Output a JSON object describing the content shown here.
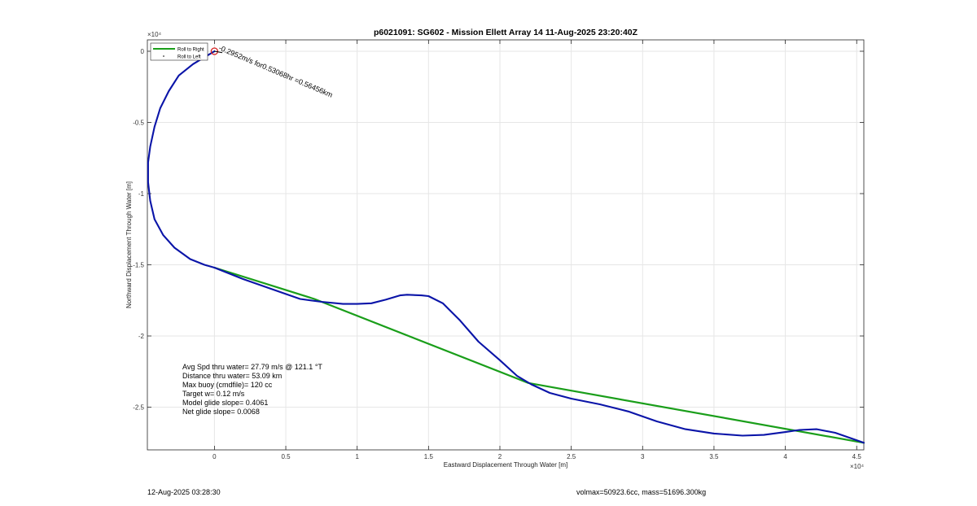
{
  "chart_data": {
    "type": "line",
    "title": "p6021091: SG602 - Mission Ellett Array 14 11-Aug-2025 23:20:40Z",
    "xlabel": "Eastward Displacement Through Water [m]",
    "ylabel": "Northward Displacement Through Water [m]",
    "x_exponent_label": "×10⁴",
    "y_exponent_label": "×10⁴",
    "xlim": [
      -0.47,
      4.55
    ],
    "ylim": [
      -2.8,
      0.08
    ],
    "x_ticks": [
      0,
      0.5,
      1,
      1.5,
      2,
      2.5,
      3,
      3.5,
      4,
      4.5
    ],
    "x_tick_labels": [
      "0",
      "0.5",
      "1",
      "1.5",
      "2",
      "2.5",
      "3",
      "3.5",
      "4",
      "4.5"
    ],
    "y_ticks": [
      0,
      -0.5,
      -1,
      -1.5,
      -2,
      -2.5
    ],
    "y_tick_labels": [
      "0",
      "-0.5",
      "-1",
      "-1.5",
      "-2",
      "-2.5"
    ],
    "grid": true,
    "legend_position": "top-left",
    "legend": [
      "Roll to Right",
      "Roll to Left"
    ],
    "series": [
      {
        "name": "Roll to Right",
        "color": "#1a9e1a",
        "x": [
          0,
          0.7,
          2.2,
          4.55
        ],
        "y": [
          -1.52,
          -1.74,
          -2.33,
          -2.75
        ]
      },
      {
        "color": "#0a14a8",
        "x": [
          0,
          -0.15,
          -0.25,
          -0.32,
          -0.38,
          -0.42,
          -0.45,
          -0.465,
          -0.465,
          -0.45,
          -0.42,
          -0.36,
          -0.28,
          -0.17,
          -0.07,
          0,
          0.2,
          0.4,
          0.6,
          0.75,
          0.9,
          1.0,
          1.1,
          1.2,
          1.3,
          1.35,
          1.45,
          1.5,
          1.6,
          1.72,
          1.85,
          2.0,
          2.12,
          2.22,
          2.35,
          2.5,
          2.7,
          2.9,
          3.1,
          3.3,
          3.5,
          3.7,
          3.85,
          4.0,
          4.1,
          4.22,
          4.35,
          4.45,
          4.55
        ],
        "y": [
          0,
          -0.09,
          -0.17,
          -0.28,
          -0.4,
          -0.53,
          -0.67,
          -0.78,
          -0.92,
          -1.05,
          -1.18,
          -1.29,
          -1.38,
          -1.46,
          -1.5,
          -1.52,
          -1.6,
          -1.67,
          -1.74,
          -1.76,
          -1.775,
          -1.775,
          -1.77,
          -1.745,
          -1.715,
          -1.71,
          -1.715,
          -1.72,
          -1.77,
          -1.89,
          -2.04,
          -2.17,
          -2.28,
          -2.34,
          -2.4,
          -2.44,
          -2.48,
          -2.53,
          -2.6,
          -2.655,
          -2.685,
          -2.7,
          -2.695,
          -2.675,
          -2.66,
          -2.655,
          -2.68,
          -2.715,
          -2.75
        ]
      }
    ],
    "start_marker": {
      "x": 0,
      "y": 0,
      "color": "#d62020"
    },
    "current_label": "-0.2952m/s for0.53068hr =0.56456km",
    "current_vector": {
      "dx": 0.055,
      "dy": -0.01
    },
    "stats": [
      "Avg Spd thru water= 27.79 m/s @ 121.1 °T",
      "Distance thru water= 53.09 km",
      "Max buoy (cmdfile)= 120 cc",
      "Target w= 0.12 m/s",
      "Model glide slope= 0.4061",
      "Net glide slope= 0.0068"
    ]
  },
  "footer": {
    "timestamp": "12-Aug-2025 03:28:30",
    "volmass": "volmax=50923.6cc, mass=51696.300kg"
  }
}
